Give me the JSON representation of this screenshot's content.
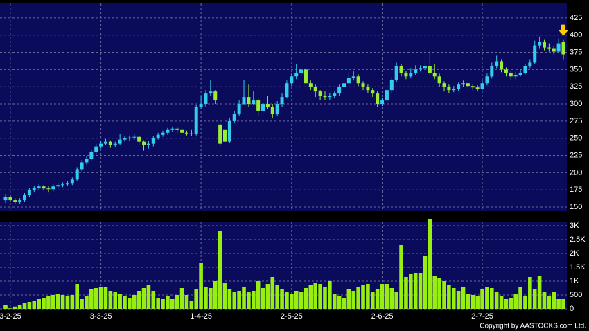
{
  "chart_data": {
    "type": "candlestick",
    "categories": [
      null,
      "3-2-25",
      null,
      null,
      null,
      null,
      null,
      null,
      null,
      null,
      null,
      null,
      null,
      null,
      null,
      null,
      null,
      null,
      null,
      null,
      "3-3-25",
      null,
      null,
      null,
      null,
      null,
      null,
      null,
      null,
      null,
      null,
      null,
      null,
      null,
      null,
      null,
      null,
      null,
      null,
      null,
      null,
      "1-4-25",
      null,
      null,
      null,
      null,
      null,
      null,
      null,
      null,
      null,
      null,
      null,
      null,
      null,
      null,
      null,
      null,
      null,
      null,
      "2-5-25",
      null,
      null,
      null,
      null,
      null,
      null,
      null,
      null,
      null,
      null,
      null,
      null,
      null,
      null,
      null,
      null,
      null,
      null,
      "2-6-25",
      null,
      null,
      null,
      null,
      null,
      null,
      null,
      null,
      null,
      null,
      null,
      null,
      null,
      null,
      null,
      null,
      null,
      null,
      null,
      null,
      "2-7-25",
      null,
      null,
      null,
      null,
      null,
      null,
      null,
      null,
      null,
      null,
      null,
      null,
      null,
      null,
      null,
      null,
      null
    ],
    "candles": [
      [
        160,
        169,
        156,
        165
      ],
      [
        165,
        168,
        157,
        160
      ],
      [
        160,
        163,
        155,
        158
      ],
      [
        158,
        163,
        155,
        160
      ],
      [
        160,
        171,
        158,
        168
      ],
      [
        168,
        178,
        165,
        175
      ],
      [
        175,
        181,
        172,
        178
      ],
      [
        178,
        183,
        175,
        180
      ],
      [
        180,
        182,
        174,
        177
      ],
      [
        177,
        180,
        172,
        176
      ],
      [
        176,
        183,
        173,
        180
      ],
      [
        180,
        185,
        178,
        182
      ],
      [
        182,
        186,
        179,
        183
      ],
      [
        183,
        188,
        181,
        185
      ],
      [
        185,
        193,
        182,
        190
      ],
      [
        190,
        208,
        188,
        205
      ],
      [
        205,
        218,
        202,
        215
      ],
      [
        215,
        224,
        212,
        220
      ],
      [
        220,
        233,
        218,
        230
      ],
      [
        230,
        242,
        227,
        238
      ],
      [
        238,
        246,
        235,
        242
      ],
      [
        242,
        249,
        240,
        245
      ],
      [
        245,
        247,
        236,
        240
      ],
      [
        240,
        245,
        237,
        242
      ],
      [
        242,
        256,
        240,
        248
      ],
      [
        248,
        253,
        245,
        250
      ],
      [
        250,
        254,
        246,
        251
      ],
      [
        251,
        256,
        248,
        252
      ],
      [
        252,
        254,
        240,
        245
      ],
      [
        245,
        247,
        232,
        240
      ],
      [
        240,
        246,
        235,
        242
      ],
      [
        242,
        253,
        238,
        250
      ],
      [
        250,
        258,
        248,
        255
      ],
      [
        255,
        261,
        252,
        258
      ],
      [
        258,
        265,
        255,
        262
      ],
      [
        262,
        267,
        259,
        264
      ],
      [
        264,
        266,
        258,
        262
      ],
      [
        262,
        264,
        255,
        258
      ],
      [
        258,
        261,
        254,
        257
      ],
      [
        257,
        262,
        253,
        256
      ],
      [
        256,
        298,
        254,
        295
      ],
      [
        295,
        312,
        292,
        300
      ],
      [
        300,
        320,
        296,
        315
      ],
      [
        315,
        335,
        312,
        318
      ],
      [
        318,
        320,
        300,
        305
      ],
      [
        270,
        272,
        238,
        242
      ],
      [
        262,
        265,
        230,
        245
      ],
      [
        245,
        280,
        243,
        275
      ],
      [
        275,
        290,
        272,
        285
      ],
      [
        285,
        305,
        282,
        300
      ],
      [
        300,
        335,
        298,
        310
      ],
      [
        310,
        328,
        296,
        300
      ],
      [
        300,
        318,
        298,
        305
      ],
      [
        305,
        308,
        283,
        290
      ],
      [
        290,
        304,
        286,
        300
      ],
      [
        300,
        312,
        292,
        295
      ],
      [
        295,
        300,
        280,
        285
      ],
      [
        285,
        304,
        282,
        300
      ],
      [
        300,
        315,
        296,
        310
      ],
      [
        310,
        334,
        308,
        330
      ],
      [
        330,
        345,
        326,
        340
      ],
      [
        340,
        358,
        336,
        345
      ],
      [
        345,
        352,
        340,
        350
      ],
      [
        350,
        353,
        328,
        330
      ],
      [
        330,
        334,
        320,
        325
      ],
      [
        325,
        328,
        310,
        318
      ],
      [
        318,
        320,
        305,
        312
      ],
      [
        312,
        318,
        305,
        310
      ],
      [
        310,
        316,
        306,
        312
      ],
      [
        312,
        318,
        308,
        315
      ],
      [
        315,
        328,
        312,
        325
      ],
      [
        325,
        334,
        322,
        330
      ],
      [
        330,
        346,
        328,
        338
      ],
      [
        338,
        348,
        334,
        340
      ],
      [
        340,
        343,
        326,
        330
      ],
      [
        330,
        333,
        320,
        325
      ],
      [
        325,
        328,
        316,
        320
      ],
      [
        320,
        323,
        310,
        315
      ],
      [
        315,
        318,
        296,
        300
      ],
      [
        300,
        309,
        297,
        305
      ],
      [
        305,
        324,
        302,
        320
      ],
      [
        320,
        338,
        316,
        335
      ],
      [
        335,
        360,
        332,
        355
      ],
      [
        355,
        358,
        340,
        345
      ],
      [
        345,
        348,
        336,
        340
      ],
      [
        340,
        352,
        337,
        345
      ],
      [
        345,
        356,
        342,
        350
      ],
      [
        350,
        356,
        347,
        352
      ],
      [
        352,
        380,
        350,
        355
      ],
      [
        355,
        376,
        342,
        345
      ],
      [
        345,
        358,
        336,
        340
      ],
      [
        340,
        344,
        325,
        330
      ],
      [
        330,
        333,
        318,
        325
      ],
      [
        325,
        328,
        315,
        320
      ],
      [
        320,
        326,
        317,
        322
      ],
      [
        322,
        331,
        319,
        328
      ],
      [
        328,
        334,
        325,
        330
      ],
      [
        330,
        333,
        322,
        326
      ],
      [
        326,
        329,
        320,
        324
      ],
      [
        324,
        327,
        318,
        322
      ],
      [
        322,
        334,
        320,
        330
      ],
      [
        330,
        344,
        327,
        340
      ],
      [
        340,
        360,
        337,
        355
      ],
      [
        355,
        370,
        352,
        362
      ],
      [
        362,
        365,
        346,
        350
      ],
      [
        350,
        353,
        340,
        345
      ],
      [
        345,
        348,
        335,
        340
      ],
      [
        340,
        346,
        336,
        342
      ],
      [
        342,
        350,
        340,
        345
      ],
      [
        345,
        358,
        343,
        355
      ],
      [
        355,
        365,
        352,
        360
      ],
      [
        360,
        392,
        358,
        385
      ],
      [
        385,
        398,
        380,
        390
      ],
      [
        390,
        393,
        378,
        382
      ],
      [
        382,
        388,
        376,
        380
      ],
      [
        380,
        384,
        372,
        376
      ],
      [
        376,
        395,
        374,
        388
      ],
      [
        390,
        393,
        365,
        372
      ]
    ],
    "up_color": "#33ccee",
    "down_color": "#99ee33",
    "ylim": [
      144,
      446
    ],
    "yticks": [
      150,
      175,
      200,
      225,
      250,
      275,
      300,
      325,
      350,
      375,
      400,
      425
    ],
    "grid": true,
    "volume": {
      "color": "#99ee11",
      "values": [
        150,
        20,
        80,
        150,
        200,
        250,
        300,
        350,
        400,
        450,
        500,
        550,
        500,
        450,
        500,
        900,
        350,
        450,
        700,
        750,
        800,
        800,
        650,
        600,
        550,
        450,
        400,
        500,
        650,
        750,
        850,
        650,
        400,
        350,
        450,
        350,
        500,
        750,
        500,
        300,
        700,
        1650,
        800,
        750,
        1000,
        2800,
        950,
        700,
        600,
        650,
        800,
        600,
        650,
        1000,
        750,
        900,
        1150,
        850,
        700,
        600,
        550,
        650,
        600,
        750,
        850,
        950,
        900,
        800,
        1000,
        550,
        450,
        400,
        700,
        650,
        800,
        850,
        900,
        600,
        700,
        900,
        900,
        750,
        600,
        2300,
        1150,
        1250,
        1300,
        1300,
        1900,
        3250,
        1200,
        1100,
        1000,
        850,
        750,
        650,
        800,
        550,
        500,
        450,
        700,
        800,
        750,
        600,
        450,
        350,
        400,
        550,
        800,
        450,
        1150,
        700,
        1200,
        600,
        450,
        600,
        350,
        350
      ],
      "ylim": [
        0,
        3150
      ],
      "yticks": [
        0,
        500,
        {
          "value": 1000,
          "label": "1K"
        },
        {
          "value": 1500,
          "label": "1.5K"
        },
        {
          "value": 2000,
          "label": "2K"
        },
        {
          "value": 2500,
          "label": "2.5K"
        },
        {
          "value": 3000,
          "label": "3K"
        }
      ]
    },
    "copyright": "Copyright by AASTOCKS.com Ltd."
  }
}
